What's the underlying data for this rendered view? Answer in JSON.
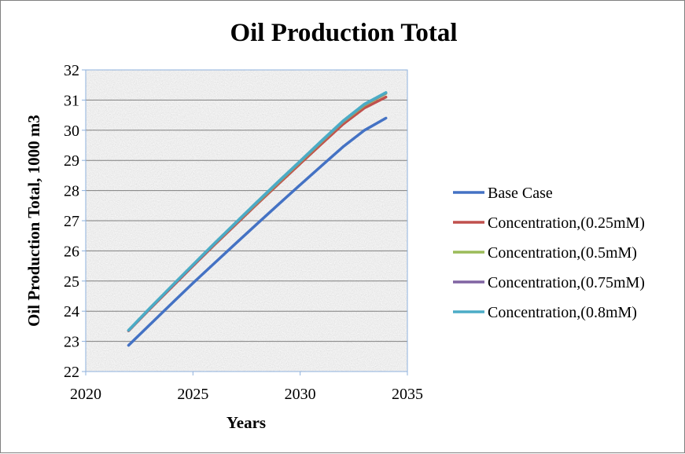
{
  "chart_data": {
    "type": "line",
    "title": "Oil Production  Total",
    "xlabel": "Years",
    "ylabel": "Oil Production Total, 1000 m3",
    "xlim": [
      2020,
      2035
    ],
    "ylim": [
      22,
      32
    ],
    "x_ticks": [
      "2020",
      "2025",
      "2030",
      "2035"
    ],
    "y_ticks": [
      "22",
      "23",
      "24",
      "25",
      "26",
      "27",
      "28",
      "29",
      "30",
      "31",
      "32"
    ],
    "grid": "horizontal",
    "legend_position": "right",
    "background": "gray granite texture",
    "x": [
      2022,
      2023,
      2024,
      2025,
      2026,
      2027,
      2028,
      2029,
      2030,
      2031,
      2032,
      2033,
      2034
    ],
    "series": [
      {
        "name": "Base Case",
        "color": "#4472C4",
        "values": [
          22.87,
          23.56,
          24.25,
          24.93,
          25.59,
          26.25,
          26.9,
          27.55,
          28.19,
          28.82,
          29.45,
          30.0,
          30.4
        ]
      },
      {
        "name": "Concentration,(0.25mM)",
        "color": "#C0504D",
        "values": [
          23.35,
          24.08,
          24.79,
          25.5,
          26.2,
          26.88,
          27.56,
          28.23,
          28.89,
          29.55,
          30.2,
          30.74,
          31.1
        ]
      },
      {
        "name": "Concentration,(0.5mM)",
        "color": "#9BBB59",
        "values": [
          23.36,
          24.1,
          24.82,
          25.53,
          26.23,
          26.92,
          27.6,
          28.28,
          28.95,
          29.62,
          30.28,
          30.83,
          31.22
        ]
      },
      {
        "name": "Concentration,(0.75mM)",
        "color": "#8064A2",
        "values": [
          23.36,
          24.1,
          24.82,
          25.53,
          26.24,
          26.93,
          27.62,
          28.3,
          28.97,
          29.64,
          30.3,
          30.86,
          31.24
        ]
      },
      {
        "name": "Concentration,(0.8mM)",
        "color": "#4BACC6",
        "values": [
          23.37,
          24.11,
          24.83,
          25.54,
          26.25,
          26.94,
          27.63,
          28.31,
          28.98,
          29.65,
          30.31,
          30.87,
          31.25
        ]
      }
    ]
  }
}
